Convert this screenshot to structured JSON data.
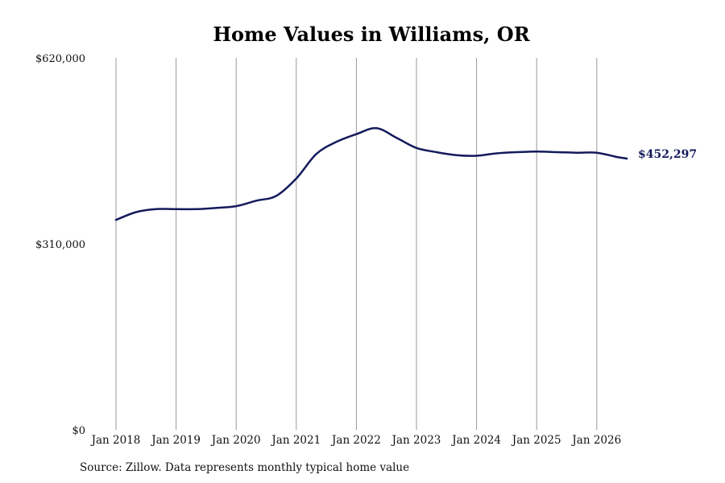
{
  "chart_data": {
    "type": "line",
    "title": "Home Values in Williams, OR",
    "source": "Source: Zillow. Data represents monthly typical home value",
    "y_ticks": [
      "$620,000",
      "$310,000",
      "$0"
    ],
    "ylim": [
      0,
      620000
    ],
    "x_ticks": [
      "Jan 2018",
      "Jan 2019",
      "Jan 2020",
      "Jan 2021",
      "Jan 2022",
      "Jan 2023",
      "Jan 2024",
      "Jan 2025",
      "Jan 2026"
    ],
    "grid": "vertical",
    "line_color": "#141a5c",
    "end_label": "$452,297",
    "series": [
      {
        "x": [
          "2018-01",
          "2018-05",
          "2018-09",
          "2019-01",
          "2019-05",
          "2019-09",
          "2020-01",
          "2020-05",
          "2020-09",
          "2021-01",
          "2021-05",
          "2021-09",
          "2022-01",
          "2022-05",
          "2022-09",
          "2023-01",
          "2023-05",
          "2023-09",
          "2024-01",
          "2024-05",
          "2024-09",
          "2025-01",
          "2025-05",
          "2025-09",
          "2026-01",
          "2026-05",
          "2026-07"
        ],
        "values": [
          350000,
          363000,
          368000,
          368000,
          368000,
          370000,
          373000,
          382000,
          390000,
          419000,
          460000,
          480000,
          493000,
          503000,
          487000,
          470000,
          463000,
          458000,
          457000,
          461000,
          463000,
          464000,
          463000,
          462000,
          462000,
          455000,
          452297
        ]
      }
    ]
  }
}
